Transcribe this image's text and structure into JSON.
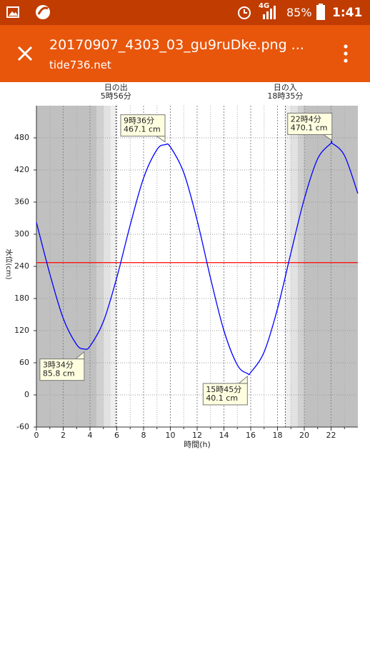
{
  "status_bar": {
    "network": "4G",
    "battery": "85%",
    "time": "1:41"
  },
  "toolbar": {
    "title": "20170907_4303_03_gu9ruDke.png ...",
    "subtitle": "tide736.net"
  },
  "chart_data": {
    "type": "line",
    "x_label": "時間(h)",
    "y_label": "水位(cm)",
    "x": [
      0,
      1,
      2,
      3,
      3.567,
      4,
      5,
      6,
      7,
      8,
      9,
      9.6,
      10,
      11,
      12,
      13,
      14,
      15,
      15.75,
      16,
      17,
      18,
      19,
      20,
      21,
      22,
      22.067,
      23,
      24
    ],
    "series": [
      {
        "color": "#0000ff",
        "values": [
          322,
          226,
          143,
          94,
          85.8,
          91,
          137,
          219,
          317,
          405,
          458,
          467.1,
          463,
          415,
          326,
          218,
          120,
          56,
          40.1,
          42,
          80,
          161,
          265,
          366,
          441,
          470,
          470.1,
          447,
          376
        ]
      }
    ],
    "xlim": [
      0,
      24
    ],
    "ylim": [
      -60,
      540
    ],
    "xticks": [
      0,
      2,
      4,
      6,
      8,
      10,
      12,
      14,
      16,
      18,
      20,
      22
    ],
    "xminor": [
      1,
      3,
      5,
      7,
      9,
      11,
      13,
      15,
      17,
      19,
      21,
      23
    ],
    "yticks": [
      -60,
      0,
      60,
      120,
      180,
      240,
      300,
      360,
      420,
      480
    ],
    "grid": true,
    "reference_line": {
      "y": 247,
      "color": "#ff0000"
    },
    "bands": [
      {
        "x": [
          0,
          4.48
        ],
        "color": "#c0c0c0"
      },
      {
        "x": [
          4.48,
          5.0
        ],
        "color": "#d0d0d0"
      },
      {
        "x": [
          5.0,
          5.55
        ],
        "color": "#e2e2e2"
      },
      {
        "x": [
          5.55,
          5.933
        ],
        "color": "#efefef"
      },
      {
        "x": [
          18.583,
          19.0
        ],
        "color": "#efefef"
      },
      {
        "x": [
          19.0,
          19.5
        ],
        "color": "#e2e2e2"
      },
      {
        "x": [
          19.5,
          20.0
        ],
        "color": "#d0d0d0"
      },
      {
        "x": [
          20.0,
          24
        ],
        "color": "#c0c0c0"
      }
    ],
    "sun": [
      {
        "label": "日の出",
        "time": "5時56分",
        "x": 5.933
      },
      {
        "label": "日の入",
        "time": "18時35分",
        "x": 18.583
      }
    ],
    "extremes": [
      {
        "time": "3時34分",
        "level": "85.8 cm",
        "x": 3.567,
        "y": 85.8,
        "kind": "low"
      },
      {
        "time": "9時36分",
        "level": "467.1 cm",
        "x": 9.6,
        "y": 467.1,
        "kind": "high"
      },
      {
        "time": "15時45分",
        "level": "40.1 cm",
        "x": 15.75,
        "y": 40.1,
        "kind": "low"
      },
      {
        "time": "22時4分",
        "level": "470.1 cm",
        "x": 22.067,
        "y": 470.1,
        "kind": "high"
      }
    ]
  }
}
